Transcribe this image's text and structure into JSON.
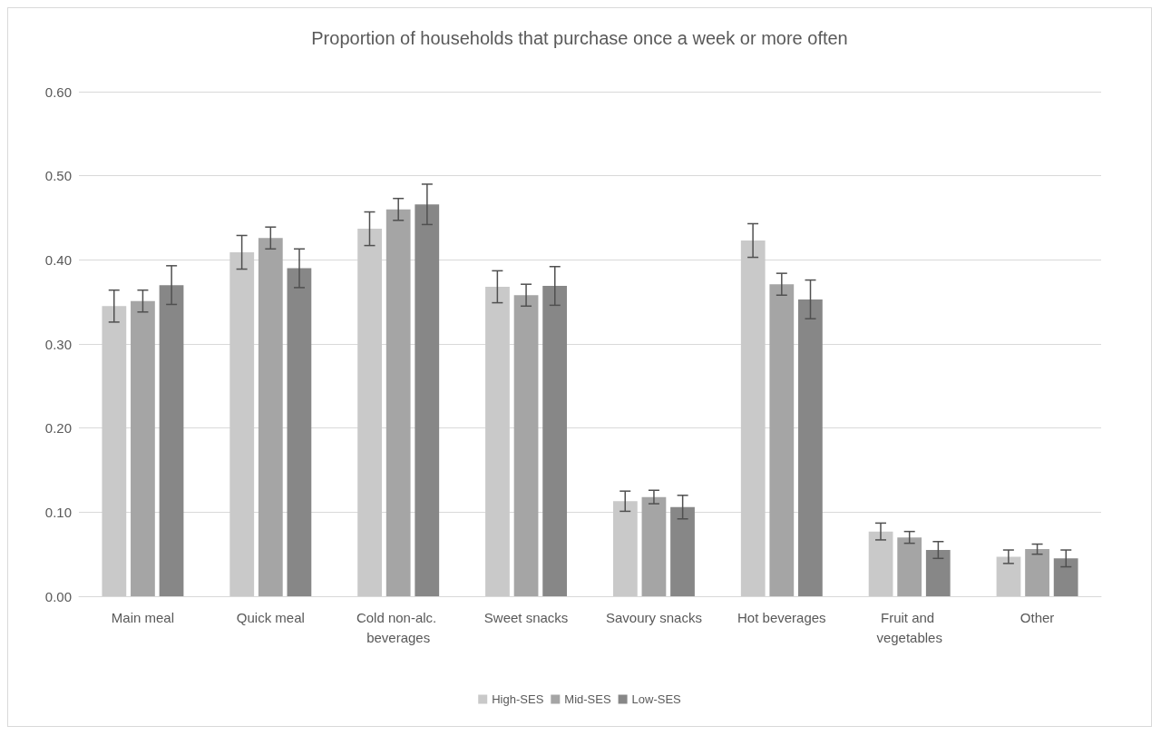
{
  "chart_data": {
    "type": "bar",
    "title": "Proportion of households that purchase once a week or more often",
    "categories": [
      "Main meal",
      "Quick meal",
      "Cold non-alc. beverages",
      "Sweet snacks",
      "Savoury snacks",
      "Hot beverages",
      "Fruit and vegetables",
      "Other"
    ],
    "series": [
      {
        "name": "High-SES",
        "color": "#c9c9c9",
        "values": [
          0.345,
          0.409,
          0.437,
          0.368,
          0.113,
          0.423,
          0.077,
          0.047
        ],
        "errors": [
          0.019,
          0.02,
          0.02,
          0.019,
          0.012,
          0.02,
          0.01,
          0.008
        ]
      },
      {
        "name": "Mid-SES",
        "color": "#a5a5a5",
        "values": [
          0.351,
          0.426,
          0.46,
          0.358,
          0.118,
          0.371,
          0.07,
          0.056
        ],
        "errors": [
          0.013,
          0.013,
          0.013,
          0.013,
          0.008,
          0.013,
          0.007,
          0.006
        ]
      },
      {
        "name": "Low-SES",
        "color": "#878787",
        "values": [
          0.37,
          0.39,
          0.466,
          0.369,
          0.106,
          0.353,
          0.055,
          0.045
        ],
        "errors": [
          0.023,
          0.023,
          0.024,
          0.023,
          0.014,
          0.023,
          0.01,
          0.01
        ]
      }
    ],
    "ylim": [
      0,
      0.6
    ],
    "yticks": [
      {
        "value": 0,
        "label": "0.00"
      },
      {
        "value": 0.1,
        "label": "0.10"
      },
      {
        "value": 0.2,
        "label": "0.20"
      },
      {
        "value": 0.3,
        "label": "0.30"
      },
      {
        "value": 0.4,
        "label": "0.40"
      },
      {
        "value": 0.5,
        "label": "0.50"
      },
      {
        "value": 0.6,
        "label": "0.60"
      }
    ],
    "grid": "y",
    "legend": "bottom"
  }
}
